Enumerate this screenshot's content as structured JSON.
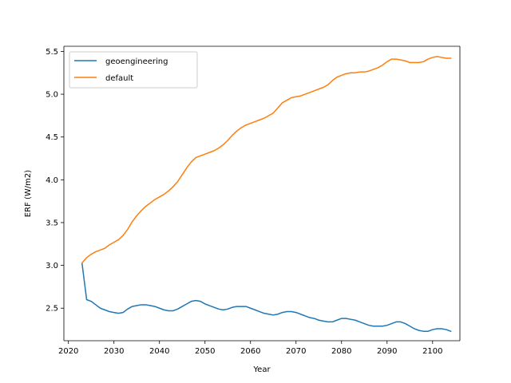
{
  "chart_data": {
    "type": "line",
    "title": "",
    "xlabel": "Year",
    "ylabel": "ERF (W/m2)",
    "xlim": [
      2019,
      2106
    ],
    "ylim": [
      2.12,
      5.56
    ],
    "xticks": [
      2020,
      2030,
      2040,
      2050,
      2060,
      2070,
      2080,
      2090,
      2100
    ],
    "yticks": [
      2.5,
      3.0,
      3.5,
      4.0,
      4.5,
      5.0,
      5.5
    ],
    "grid": false,
    "legend": "top-left",
    "x": [
      2023,
      2024,
      2025,
      2026,
      2027,
      2028,
      2029,
      2030,
      2031,
      2032,
      2033,
      2034,
      2035,
      2036,
      2037,
      2038,
      2039,
      2040,
      2041,
      2042,
      2043,
      2044,
      2045,
      2046,
      2047,
      2048,
      2049,
      2050,
      2051,
      2052,
      2053,
      2054,
      2055,
      2056,
      2057,
      2058,
      2059,
      2060,
      2061,
      2062,
      2063,
      2064,
      2065,
      2066,
      2067,
      2068,
      2069,
      2070,
      2071,
      2072,
      2073,
      2074,
      2075,
      2076,
      2077,
      2078,
      2079,
      2080,
      2081,
      2082,
      2083,
      2084,
      2085,
      2086,
      2087,
      2088,
      2089,
      2090,
      2091,
      2092,
      2093,
      2094,
      2095,
      2096,
      2097,
      2098,
      2099,
      2100,
      2101,
      2102,
      2103,
      2104
    ],
    "series": [
      {
        "name": "geoengineering",
        "color": "#1f77b4",
        "values": [
          3.02,
          2.6,
          2.58,
          2.54,
          2.5,
          2.48,
          2.46,
          2.45,
          2.44,
          2.45,
          2.49,
          2.52,
          2.53,
          2.54,
          2.54,
          2.53,
          2.52,
          2.5,
          2.48,
          2.47,
          2.47,
          2.49,
          2.52,
          2.55,
          2.58,
          2.59,
          2.58,
          2.55,
          2.53,
          2.51,
          2.49,
          2.48,
          2.49,
          2.51,
          2.52,
          2.52,
          2.52,
          2.5,
          2.48,
          2.46,
          2.44,
          2.43,
          2.42,
          2.43,
          2.45,
          2.46,
          2.46,
          2.45,
          2.43,
          2.41,
          2.39,
          2.38,
          2.36,
          2.35,
          2.34,
          2.34,
          2.36,
          2.38,
          2.38,
          2.37,
          2.36,
          2.34,
          2.32,
          2.3,
          2.29,
          2.29,
          2.29,
          2.3,
          2.32,
          2.34,
          2.34,
          2.32,
          2.29,
          2.26,
          2.24,
          2.23,
          2.23,
          2.25,
          2.26,
          2.26,
          2.25,
          2.23
        ]
      },
      {
        "name": "default",
        "color": "#ff7f0e",
        "values": [
          3.03,
          3.09,
          3.13,
          3.16,
          3.18,
          3.2,
          3.24,
          3.27,
          3.3,
          3.35,
          3.42,
          3.51,
          3.58,
          3.64,
          3.69,
          3.73,
          3.77,
          3.8,
          3.83,
          3.87,
          3.92,
          3.98,
          4.06,
          4.14,
          4.21,
          4.26,
          4.28,
          4.3,
          4.32,
          4.34,
          4.37,
          4.41,
          4.46,
          4.52,
          4.57,
          4.61,
          4.64,
          4.66,
          4.68,
          4.7,
          4.72,
          4.75,
          4.78,
          4.84,
          4.9,
          4.93,
          4.96,
          4.97,
          4.98,
          5.0,
          5.02,
          5.04,
          5.06,
          5.08,
          5.11,
          5.16,
          5.2,
          5.22,
          5.24,
          5.25,
          5.25,
          5.26,
          5.26,
          5.27,
          5.29,
          5.31,
          5.34,
          5.38,
          5.41,
          5.41,
          5.4,
          5.39,
          5.37,
          5.37,
          5.37,
          5.38,
          5.41,
          5.43,
          5.44,
          5.43,
          5.42,
          5.42
        ]
      }
    ]
  }
}
